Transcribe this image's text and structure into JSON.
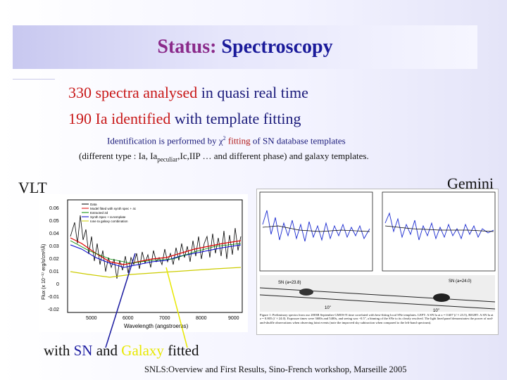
{
  "title": {
    "part1": "Status:",
    "part2": "Spectroscopy"
  },
  "bullets": [
    {
      "red": "330 spectra analysed",
      "rest": " in quasi real time"
    },
    {
      "red": "190 Ia identified",
      "rest": " with template fitting"
    }
  ],
  "note1": {
    "a": "Identification is performed by ",
    "chi": "χ",
    "sup": "2",
    "red": " fitting",
    "b": " of SN database templates"
  },
  "note2": {
    "a": "(different   type : Ia, Ia",
    "sub": "peculiar",
    "b": ",Ic,IIP … and different phase) and galaxy templates."
  },
  "labels": {
    "vlt": "VLT",
    "gemini": "Gemini"
  },
  "caption": {
    "a": "with ",
    "sn": "SN",
    "b": " and ",
    "galaxy": "Galaxy",
    "c": " fitted"
  },
  "footer": "SNLS:Overview and First Results, Sino-French workshop, Marseille 2005",
  "vlt_plot": {
    "xlabel": "Wavelength (angstroems)",
    "ylabel": "Flux (x 10⁻¹⁷ erg/s/cm²/Å)",
    "x_ticks": [
      "5000",
      "6000",
      "7000",
      "8000",
      "9000"
    ],
    "y_ticks": [
      "0.06",
      "0.05",
      "0.04",
      "0.03",
      "0.02",
      "0.01",
      "0",
      "-0.01",
      "-0.02"
    ],
    "legend": [
      "Data",
      "Model fitted with synth spec + 4c",
      "Extracted 2d",
      "Synth Spec + Ia template",
      "Ione Ia galaxy combination"
    ]
  },
  "gemini_panel": {
    "sn_labels": [
      "SN (a=23.8)",
      "SN (a=24.0)"
    ],
    "scale_labels": [
      "10\"",
      "10\""
    ],
    "figure_caption": "Figure 1: Preliminary spectra from our 2003B September GMOS-N time correlated with best-fitting local SNe templates. LEFT: A SN Ia at z = 0.607 (i' ≈ 23.5), RIGHT: A SN Ia at z = 0.805 (i' ≈ 24.0). Exposure times were 3600s and 5400s, and seeing was ~0.5\", a binning of the SNe to its clearly resolved. The light lined panel demonstrates the power of nod-and-shuffle observations when observing faint events (note the improved sky subtraction when compared to the left-hand spectrum)."
  },
  "colors": {
    "title_purple": "#8a2a8a",
    "title_blue": "#1a1a9a",
    "red": "#c81818",
    "sn_blue": "#1a1aa0",
    "galaxy_yellow": "#e8e800"
  }
}
